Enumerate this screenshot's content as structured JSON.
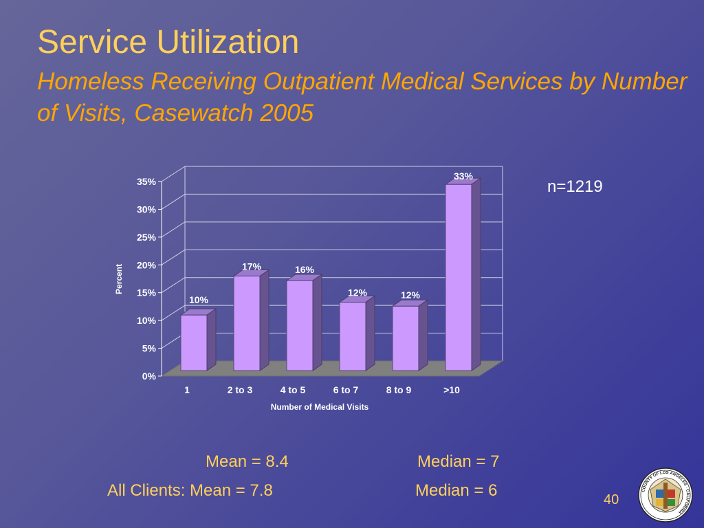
{
  "slide": {
    "title": "Service Utilization",
    "subtitle": "Homeless Receiving Outpatient Medical Services by Number of Visits, Casewatch 2005",
    "n_label": "n=1219",
    "stats": {
      "mean": "Mean = 8.4",
      "median": "Median = 7",
      "all_clients_mean": "All Clients: Mean = 7.8",
      "all_clients_median": "Median = 6"
    },
    "page_number": "40",
    "seal_text": "COUNTY OF LOS ANGELES · CALIFORNIA"
  },
  "colors": {
    "title": "#ffd05a",
    "subtitle": "#ffa600",
    "bar_front": "#cc99ff",
    "bar_side": "#66538f",
    "bar_top": "#9a7acc",
    "floor": "#808080",
    "axis_text": "#ffffff"
  },
  "chart_data": {
    "type": "bar",
    "categories": [
      "1",
      "2 to 3",
      "4 to 5",
      "6 to 7",
      "8 to 9",
      ">10"
    ],
    "values": [
      10,
      17,
      16,
      12,
      12,
      33
    ],
    "value_labels": [
      "10%",
      "17%",
      "16%",
      "12%",
      "12%",
      "33%"
    ],
    "bar_heights_pct": [
      10,
      17,
      16.2,
      12.3,
      11.6,
      33.5
    ],
    "title": "",
    "xlabel": "Number of Medical Visits",
    "ylabel": "Percent",
    "ylim": [
      0,
      35
    ],
    "yticks": [
      "0%",
      "5%",
      "10%",
      "15%",
      "20%",
      "25%",
      "30%",
      "35%"
    ],
    "grid": true,
    "legend": "none",
    "style": "3d"
  }
}
